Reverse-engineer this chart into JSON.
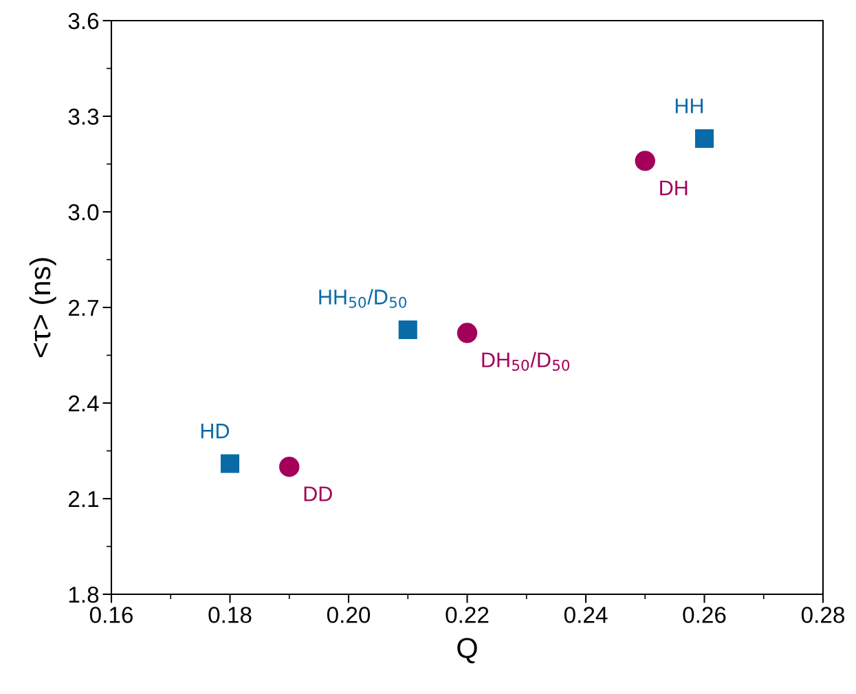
{
  "chart_data": {
    "type": "scatter",
    "xlabel": "Q",
    "ylabel": "<τ> (ns)",
    "xlim": [
      0.16,
      0.28
    ],
    "xticks": [
      {
        "value": 0.16,
        "label": "0.16"
      },
      {
        "value": 0.18,
        "label": "0.18"
      },
      {
        "value": 0.2,
        "label": "0.20"
      },
      {
        "value": 0.22,
        "label": "0.22"
      },
      {
        "value": 0.24,
        "label": "0.24"
      },
      {
        "value": 0.26,
        "label": "0.26"
      },
      {
        "value": 0.28,
        "label": "0.28"
      }
    ],
    "ylim": [
      1.8,
      3.6
    ],
    "yticks": [
      1.8,
      2.1,
      2.4,
      2.7,
      {
        "value": 3.0,
        "label": "3.0"
      },
      3.3,
      3.6
    ],
    "grid": false,
    "legend": false,
    "series": [
      {
        "color": "#0a6aa8",
        "marker": "square",
        "x": [
          0.18,
          0.21,
          0.26
        ],
        "values": [
          2.21,
          2.63,
          3.23
        ]
      },
      {
        "color": "#a3005a",
        "marker": "circle",
        "x": [
          0.19,
          0.22,
          0.25
        ],
        "values": [
          2.2,
          2.62,
          3.16
        ]
      }
    ],
    "annotations": [
      {
        "text": "HD",
        "x": 0.18,
        "y": 2.21
      },
      {
        "text": "DD",
        "x": 0.19,
        "y": 2.2
      },
      {
        "text": "HH$_{50}$/D$_{50}$",
        "x": 0.21,
        "y": 2.63
      },
      {
        "text": "DH$_{50}$/D$_{50}$",
        "x": 0.22,
        "y": 2.62
      },
      {
        "text": "DH",
        "x": 0.25,
        "y": 3.16
      },
      {
        "text": "HH",
        "x": 0.26,
        "y": 3.23
      }
    ]
  }
}
